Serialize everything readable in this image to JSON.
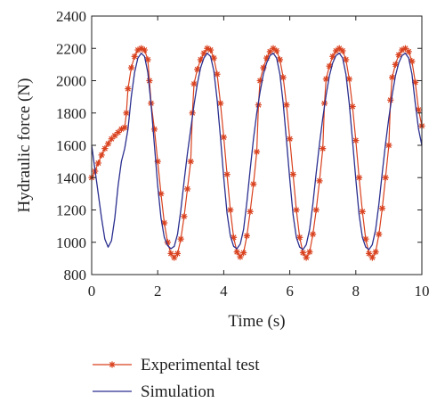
{
  "chart_data": {
    "type": "line",
    "xlabel": "Time (s)",
    "ylabel": "Hydraulic force (N)",
    "xlim": [
      0,
      10
    ],
    "ylim": [
      800,
      2400
    ],
    "xticks": [
      0,
      2,
      4,
      6,
      8,
      10
    ],
    "yticks": [
      800,
      1000,
      1200,
      1400,
      1600,
      1800,
      2000,
      2200,
      2400
    ],
    "grid": false,
    "legend_position": "below",
    "series": [
      {
        "name": "Experimental test",
        "color": "#d9411e",
        "marker": "asterisk",
        "points": [
          [
            0.0,
            1400
          ],
          [
            0.1,
            1440
          ],
          [
            0.2,
            1490
          ],
          [
            0.3,
            1540
          ],
          [
            0.4,
            1580
          ],
          [
            0.5,
            1610
          ],
          [
            0.6,
            1640
          ],
          [
            0.7,
            1660
          ],
          [
            0.8,
            1680
          ],
          [
            0.9,
            1700
          ],
          [
            1.0,
            1710
          ],
          [
            1.05,
            1800
          ],
          [
            1.1,
            1950
          ],
          [
            1.2,
            2080
          ],
          [
            1.3,
            2150
          ],
          [
            1.4,
            2190
          ],
          [
            1.5,
            2200
          ],
          [
            1.6,
            2190
          ],
          [
            1.7,
            2130
          ],
          [
            1.75,
            2000
          ],
          [
            1.8,
            1860
          ],
          [
            1.9,
            1700
          ],
          [
            2.0,
            1500
          ],
          [
            2.1,
            1300
          ],
          [
            2.2,
            1120
          ],
          [
            2.3,
            1000
          ],
          [
            2.4,
            930
          ],
          [
            2.5,
            905
          ],
          [
            2.6,
            930
          ],
          [
            2.7,
            1020
          ],
          [
            2.8,
            1160
          ],
          [
            2.9,
            1330
          ],
          [
            3.0,
            1500
          ],
          [
            3.05,
            1800
          ],
          [
            3.1,
            1980
          ],
          [
            3.2,
            2070
          ],
          [
            3.3,
            2130
          ],
          [
            3.4,
            2170
          ],
          [
            3.5,
            2200
          ],
          [
            3.6,
            2190
          ],
          [
            3.7,
            2140
          ],
          [
            3.8,
            2040
          ],
          [
            3.9,
            1860
          ],
          [
            4.0,
            1650
          ],
          [
            4.1,
            1420
          ],
          [
            4.2,
            1200
          ],
          [
            4.3,
            1030
          ],
          [
            4.4,
            940
          ],
          [
            4.5,
            910
          ],
          [
            4.6,
            935
          ],
          [
            4.7,
            1040
          ],
          [
            4.8,
            1190
          ],
          [
            4.9,
            1360
          ],
          [
            5.0,
            1560
          ],
          [
            5.05,
            1850
          ],
          [
            5.1,
            2000
          ],
          [
            5.2,
            2080
          ],
          [
            5.3,
            2140
          ],
          [
            5.4,
            2180
          ],
          [
            5.5,
            2200
          ],
          [
            5.6,
            2185
          ],
          [
            5.7,
            2130
          ],
          [
            5.8,
            2020
          ],
          [
            5.9,
            1850
          ],
          [
            6.0,
            1640
          ],
          [
            6.1,
            1420
          ],
          [
            6.2,
            1200
          ],
          [
            6.3,
            1030
          ],
          [
            6.4,
            935
          ],
          [
            6.5,
            905
          ],
          [
            6.6,
            940
          ],
          [
            6.7,
            1050
          ],
          [
            6.8,
            1200
          ],
          [
            6.9,
            1380
          ],
          [
            7.0,
            1580
          ],
          [
            7.05,
            1860
          ],
          [
            7.1,
            2010
          ],
          [
            7.2,
            2090
          ],
          [
            7.3,
            2150
          ],
          [
            7.4,
            2185
          ],
          [
            7.5,
            2200
          ],
          [
            7.6,
            2185
          ],
          [
            7.7,
            2130
          ],
          [
            7.8,
            2010
          ],
          [
            7.9,
            1840
          ],
          [
            8.0,
            1630
          ],
          [
            8.1,
            1400
          ],
          [
            8.2,
            1190
          ],
          [
            8.3,
            1020
          ],
          [
            8.4,
            930
          ],
          [
            8.5,
            905
          ],
          [
            8.6,
            940
          ],
          [
            8.7,
            1050
          ],
          [
            8.8,
            1210
          ],
          [
            8.9,
            1400
          ],
          [
            9.0,
            1600
          ],
          [
            9.05,
            1880
          ],
          [
            9.1,
            2020
          ],
          [
            9.2,
            2100
          ],
          [
            9.3,
            2160
          ],
          [
            9.4,
            2190
          ],
          [
            9.5,
            2200
          ],
          [
            9.6,
            2180
          ],
          [
            9.7,
            2120
          ],
          [
            9.8,
            1990
          ],
          [
            9.9,
            1820
          ],
          [
            10.0,
            1720
          ]
        ]
      },
      {
        "name": "Simulation",
        "color": "#2b2f8f",
        "marker": "none",
        "points": [
          [
            0.0,
            1600
          ],
          [
            0.1,
            1450
          ],
          [
            0.2,
            1300
          ],
          [
            0.3,
            1150
          ],
          [
            0.4,
            1020
          ],
          [
            0.5,
            970
          ],
          [
            0.6,
            1010
          ],
          [
            0.7,
            1150
          ],
          [
            0.8,
            1350
          ],
          [
            0.9,
            1500
          ],
          [
            1.0,
            1580
          ],
          [
            1.1,
            1700
          ],
          [
            1.2,
            1900
          ],
          [
            1.3,
            2050
          ],
          [
            1.4,
            2140
          ],
          [
            1.5,
            2170
          ],
          [
            1.6,
            2150
          ],
          [
            1.7,
            2050
          ],
          [
            1.8,
            1850
          ],
          [
            1.9,
            1600
          ],
          [
            2.0,
            1350
          ],
          [
            2.1,
            1150
          ],
          [
            2.2,
            1030
          ],
          [
            2.3,
            980
          ],
          [
            2.4,
            960
          ],
          [
            2.5,
            975
          ],
          [
            2.6,
            1050
          ],
          [
            2.7,
            1200
          ],
          [
            2.8,
            1380
          ],
          [
            2.9,
            1550
          ],
          [
            3.0,
            1700
          ],
          [
            3.1,
            1850
          ],
          [
            3.2,
            1980
          ],
          [
            3.3,
            2080
          ],
          [
            3.4,
            2140
          ],
          [
            3.5,
            2170
          ],
          [
            3.6,
            2150
          ],
          [
            3.7,
            2060
          ],
          [
            3.8,
            1880
          ],
          [
            3.9,
            1650
          ],
          [
            4.0,
            1400
          ],
          [
            4.1,
            1180
          ],
          [
            4.2,
            1040
          ],
          [
            4.3,
            975
          ],
          [
            4.4,
            960
          ],
          [
            4.5,
            990
          ],
          [
            4.6,
            1080
          ],
          [
            4.7,
            1250
          ],
          [
            4.8,
            1450
          ],
          [
            4.9,
            1640
          ],
          [
            5.0,
            1800
          ],
          [
            5.1,
            1930
          ],
          [
            5.2,
            2040
          ],
          [
            5.3,
            2110
          ],
          [
            5.4,
            2155
          ],
          [
            5.5,
            2170
          ],
          [
            5.6,
            2140
          ],
          [
            5.7,
            2040
          ],
          [
            5.8,
            1860
          ],
          [
            5.9,
            1630
          ],
          [
            6.0,
            1390
          ],
          [
            6.1,
            1170
          ],
          [
            6.2,
            1030
          ],
          [
            6.3,
            970
          ],
          [
            6.4,
            955
          ],
          [
            6.5,
            985
          ],
          [
            6.6,
            1080
          ],
          [
            6.7,
            1240
          ],
          [
            6.8,
            1430
          ],
          [
            6.9,
            1610
          ],
          [
            7.0,
            1770
          ],
          [
            7.1,
            1910
          ],
          [
            7.2,
            2030
          ],
          [
            7.3,
            2110
          ],
          [
            7.4,
            2155
          ],
          [
            7.5,
            2170
          ],
          [
            7.6,
            2140
          ],
          [
            7.7,
            2040
          ],
          [
            7.8,
            1860
          ],
          [
            7.9,
            1630
          ],
          [
            8.0,
            1390
          ],
          [
            8.1,
            1170
          ],
          [
            8.2,
            1030
          ],
          [
            8.3,
            970
          ],
          [
            8.4,
            955
          ],
          [
            8.5,
            985
          ],
          [
            8.6,
            1080
          ],
          [
            8.7,
            1240
          ],
          [
            8.8,
            1430
          ],
          [
            8.9,
            1610
          ],
          [
            9.0,
            1770
          ],
          [
            9.1,
            1910
          ],
          [
            9.2,
            2030
          ],
          [
            9.3,
            2110
          ],
          [
            9.4,
            2155
          ],
          [
            9.5,
            2170
          ],
          [
            9.6,
            2140
          ],
          [
            9.7,
            2040
          ],
          [
            9.8,
            1860
          ],
          [
            9.9,
            1700
          ],
          [
            10.0,
            1600
          ]
        ]
      }
    ]
  }
}
